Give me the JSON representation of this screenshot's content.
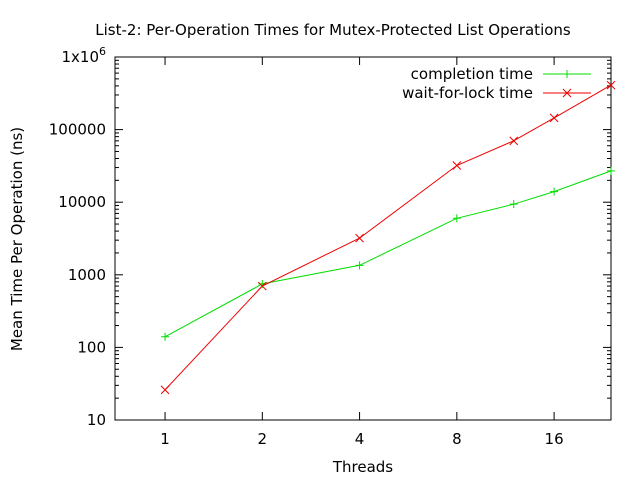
{
  "chart_data": {
    "type": "line",
    "title": "List-2: Per-Operation Times for Mutex-Protected List Operations",
    "xlabel": "Threads",
    "ylabel": "Mean Time Per Operation (ns)",
    "x_scale": "log2",
    "y_scale": "log10",
    "xlim": [
      0.7,
      24
    ],
    "ylim": [
      10,
      1000000
    ],
    "x_ticks": [
      {
        "value": 1,
        "label": "1"
      },
      {
        "value": 2,
        "label": "2"
      },
      {
        "value": 4,
        "label": "4"
      },
      {
        "value": 8,
        "label": "8"
      },
      {
        "value": 16,
        "label": "16"
      }
    ],
    "y_ticks": [
      {
        "value": 10,
        "label": "10"
      },
      {
        "value": 100,
        "label": "100"
      },
      {
        "value": 1000,
        "label": "1000"
      },
      {
        "value": 10000,
        "label": "10000"
      },
      {
        "value": 100000,
        "label": "100000"
      }
    ],
    "y_top_tick": {
      "value": 1000000,
      "base": "1x10",
      "exp": "6"
    },
    "grid": false,
    "legend_position": "top-right",
    "series": [
      {
        "name": "completion time",
        "color": "#00dd00",
        "marker": "plus",
        "x": [
          1,
          2,
          4,
          8,
          12,
          16,
          24
        ],
        "y": [
          140,
          750,
          1350,
          6000,
          9400,
          14000,
          27000
        ]
      },
      {
        "name": "wait-for-lock time",
        "color": "#ee0000",
        "marker": "cross",
        "x": [
          1,
          2,
          4,
          8,
          12,
          16,
          24
        ],
        "y": [
          26,
          700,
          3200,
          32000,
          70000,
          145000,
          410000
        ]
      }
    ]
  }
}
